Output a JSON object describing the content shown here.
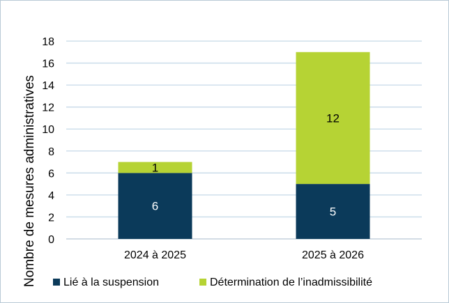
{
  "chart_data": {
    "type": "bar",
    "stacked": true,
    "categories": [
      "2024 à 2025",
      "2025 à 2026"
    ],
    "series": [
      {
        "name": "Lié à la suspension",
        "values": [
          6,
          5
        ],
        "color": "#0b3a5a",
        "label_color": "#ffffff"
      },
      {
        "name": "Détermination de l’inadmissibilité",
        "values": [
          1,
          12
        ],
        "color": "#b6d334",
        "label_color": "#000000"
      }
    ],
    "title": "",
    "xlabel": "",
    "ylabel": "Nombre de mesures administratives",
    "ylim": [
      0,
      18
    ],
    "yticks": [
      0,
      2,
      4,
      6,
      8,
      10,
      12,
      14,
      16,
      18
    ],
    "grid": true,
    "grid_color": "#c5d9e8",
    "legend": "bottom"
  }
}
